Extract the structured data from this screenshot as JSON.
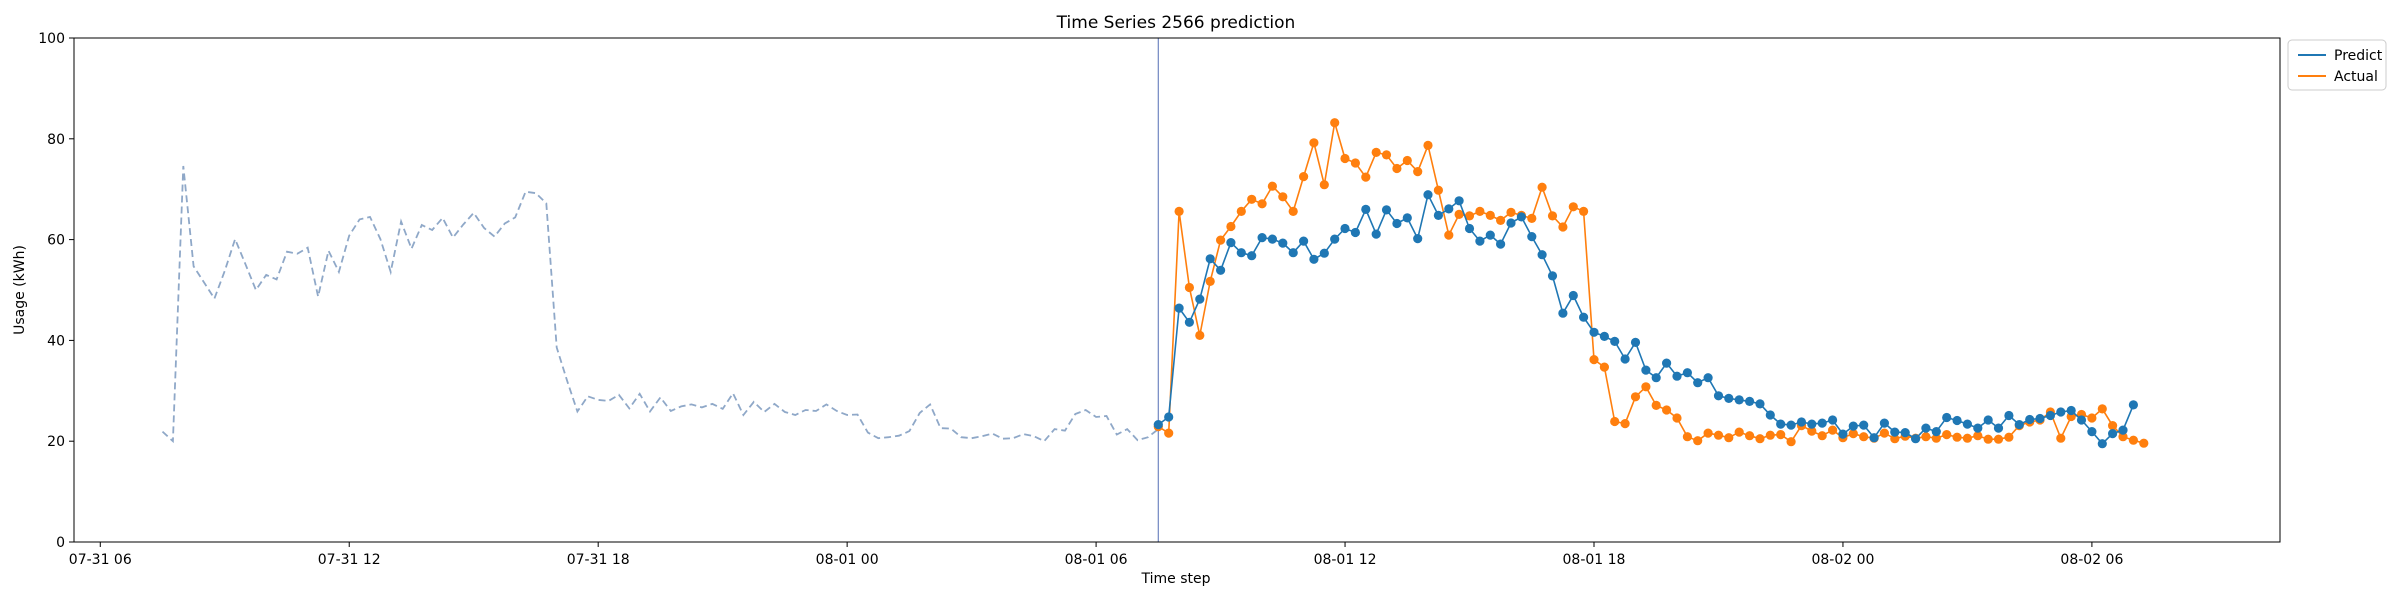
{
  "chart_data": {
    "type": "line",
    "title": "Time Series 2566 prediction",
    "xlabel": "Time step",
    "ylabel": "Usage (kWh)",
    "ylim": [
      0,
      100
    ],
    "xlim": [
      "2024-07-31T05:22",
      "2024-08-02T10:32"
    ],
    "x_ticks": [
      {
        "t": "2024-07-31T06:00",
        "label": "07-31 06"
      },
      {
        "t": "2024-07-31T12:00",
        "label": "07-31 12"
      },
      {
        "t": "2024-07-31T18:00",
        "label": "07-31 18"
      },
      {
        "t": "2024-08-01T00:00",
        "label": "08-01 00"
      },
      {
        "t": "2024-08-01T06:00",
        "label": "08-01 06"
      },
      {
        "t": "2024-08-01T12:00",
        "label": "08-01 12"
      },
      {
        "t": "2024-08-01T18:00",
        "label": "08-01 18"
      },
      {
        "t": "2024-08-02T00:00",
        "label": "08-02 00"
      },
      {
        "t": "2024-08-02T06:00",
        "label": "08-02 06"
      }
    ],
    "y_ticks": [
      0,
      20,
      40,
      60,
      80,
      100
    ],
    "grid": false,
    "legend_position": "outside top-right",
    "forecast_start": "2024-08-01T07:30",
    "series": [
      {
        "role": "history",
        "style": "dashed",
        "color": "#8fa8c8",
        "start": "2024-07-31T07:30",
        "interval_minutes": 15,
        "values": [
          21.9,
          20.0,
          74.6,
          54.7,
          51.5,
          48.3,
          53.8,
          60.1,
          55.1,
          50.0,
          53.0,
          52.1,
          57.6,
          57.2,
          58.4,
          48.7,
          57.8,
          53.6,
          60.8,
          64.0,
          64.5,
          60.1,
          53.6,
          63.6,
          58.2,
          62.9,
          61.9,
          64.3,
          60.4,
          63.0,
          65.3,
          62.3,
          60.6,
          63.2,
          64.4,
          69.5,
          69.2,
          67.2,
          38.6,
          32.0,
          25.9,
          28.9,
          28.2,
          28.0,
          29.2,
          26.5,
          29.4,
          25.9,
          28.7,
          26.0,
          26.9,
          27.3,
          26.7,
          27.4,
          26.4,
          29.5,
          25.2,
          27.8,
          25.8,
          27.4,
          25.8,
          25.2,
          26.2,
          26.0,
          27.3,
          26.0,
          25.2,
          25.3,
          21.7,
          20.6,
          20.8,
          21.1,
          22.0,
          25.6,
          27.3,
          22.6,
          22.5,
          20.8,
          20.6,
          21.0,
          21.5,
          20.5,
          20.6,
          21.4,
          21.0,
          20.0,
          22.4,
          22.1,
          25.4,
          26.2,
          24.8,
          25.0,
          21.3,
          22.4,
          20.2,
          20.8,
          22.4
        ]
      },
      {
        "name": "Predict",
        "role": "predict",
        "color": "#1f77b4",
        "start": "2024-08-01T07:30",
        "interval_minutes": 15,
        "values": [
          23.3,
          24.8,
          46.4,
          43.6,
          48.2,
          56.2,
          53.9,
          59.4,
          57.4,
          56.8,
          60.4,
          60.1,
          59.3,
          57.4,
          59.7,
          56.1,
          57.3,
          60.1,
          62.2,
          61.4,
          66.0,
          61.1,
          65.9,
          63.2,
          64.3,
          60.2,
          68.9,
          64.8,
          66.1,
          67.7,
          62.2,
          59.7,
          60.9,
          59.1,
          63.3,
          64.5,
          60.6,
          57.0,
          52.8,
          45.4,
          48.9,
          44.6,
          41.6,
          40.8,
          39.8,
          36.3,
          39.6,
          34.1,
          32.6,
          35.5,
          32.9,
          33.6,
          31.6,
          32.6,
          29.0,
          28.5,
          28.2,
          27.9,
          27.4,
          25.2,
          23.4,
          23.2,
          23.8,
          23.4,
          23.6,
          24.2,
          21.4,
          23.0,
          23.2,
          20.7,
          23.6,
          21.8,
          21.7,
          20.5,
          22.6,
          21.9,
          24.7,
          24.1,
          23.4,
          22.6,
          24.2,
          22.6,
          25.1,
          23.3,
          24.3,
          24.5,
          25.1,
          25.8,
          26.1,
          24.2,
          21.9,
          19.5,
          21.5,
          22.2,
          27.2
        ]
      },
      {
        "name": "Actual",
        "role": "actual",
        "color": "#ff7f0e",
        "start": "2024-08-01T07:30",
        "interval_minutes": 15,
        "values": [
          22.9,
          21.6,
          65.6,
          50.5,
          41.0,
          51.7,
          59.9,
          62.6,
          65.6,
          68.0,
          67.1,
          70.6,
          68.5,
          65.6,
          72.5,
          79.2,
          70.9,
          83.2,
          76.1,
          75.2,
          72.4,
          77.3,
          76.8,
          74.1,
          75.7,
          73.5,
          78.7,
          69.8,
          60.9,
          65.0,
          64.7,
          65.6,
          64.8,
          63.8,
          65.4,
          64.8,
          64.2,
          70.4,
          64.7,
          62.5,
          66.5,
          65.6,
          36.2,
          34.7,
          23.9,
          23.5,
          28.8,
          30.8,
          27.1,
          26.2,
          24.6,
          20.9,
          20.1,
          21.6,
          21.2,
          20.7,
          21.8,
          21.1,
          20.5,
          21.2,
          21.3,
          19.9,
          23.1,
          22.0,
          21.1,
          22.2,
          20.7,
          21.5,
          20.9,
          20.6,
          21.6,
          20.5,
          21.0,
          20.6,
          20.9,
          20.6,
          21.3,
          20.8,
          20.6,
          21.1,
          20.4,
          20.4,
          20.8,
          23.1,
          23.8,
          24.2,
          25.8,
          20.6,
          24.9,
          25.3,
          24.6,
          26.4,
          23.1,
          20.9,
          20.2,
          19.6
        ]
      }
    ]
  }
}
